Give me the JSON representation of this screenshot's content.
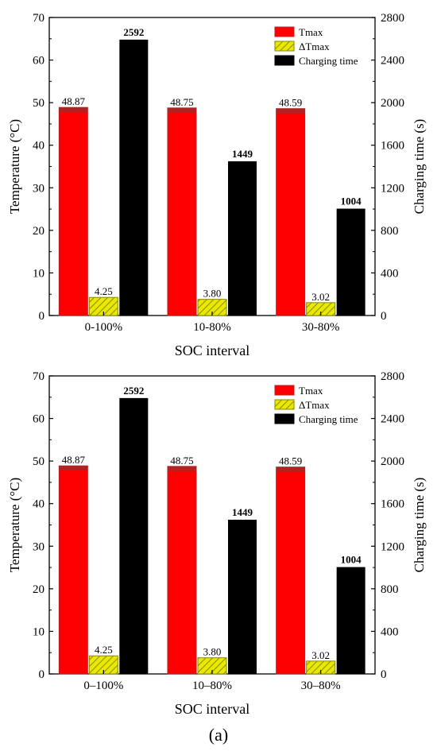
{
  "figure_caption": "(a)",
  "colors": {
    "tmax": "#ff0000",
    "tmax_edge": "#b22222",
    "dtmax": "#e8e800",
    "dtmax_hatch": "#8a8a00",
    "time": "#000000"
  },
  "chart_data": [
    {
      "type": "bar",
      "categories": [
        "0-100%",
        "10-80%",
        "30-80%"
      ],
      "xlabel": "SOC interval",
      "ylabel": "Temperature (°C)",
      "y2label": "Charging time (s)",
      "ylim": [
        0,
        70
      ],
      "y2lim": [
        0,
        2800
      ],
      "yticks": [
        0,
        10,
        20,
        30,
        40,
        50,
        60,
        70
      ],
      "y2ticks": [
        0,
        400,
        800,
        1200,
        1600,
        2000,
        2400,
        2800
      ],
      "legend_position": "top-right",
      "series": [
        {
          "name": "Tmax",
          "axis": "left",
          "values": [
            48.87,
            48.75,
            48.59
          ],
          "labels": [
            "48.87",
            "48.75",
            "48.59"
          ]
        },
        {
          "name": "ΔTmax",
          "axis": "left",
          "values": [
            4.25,
            3.8,
            3.02
          ],
          "labels": [
            "4.25",
            "3.80",
            "3.02"
          ]
        },
        {
          "name": "Charging time",
          "axis": "right",
          "values": [
            2592,
            1449,
            1004
          ],
          "labels": [
            "2592",
            "1449",
            "1004"
          ]
        }
      ]
    },
    {
      "type": "bar",
      "categories": [
        "0–100%",
        "10–80%",
        "30–80%"
      ],
      "xlabel": "SOC interval",
      "ylabel": "Temperature (°C)",
      "y2label": "Charging time (s)",
      "ylim": [
        0,
        70
      ],
      "y2lim": [
        0,
        2800
      ],
      "yticks": [
        0,
        10,
        20,
        30,
        40,
        50,
        60,
        70
      ],
      "y2ticks": [
        0,
        400,
        800,
        1200,
        1600,
        2000,
        2400,
        2800
      ],
      "legend_position": "top-right",
      "series": [
        {
          "name": "Tmax",
          "axis": "left",
          "values": [
            48.87,
            48.75,
            48.59
          ],
          "labels": [
            "48.87",
            "48.75",
            "48.59"
          ]
        },
        {
          "name": "ΔTmax",
          "axis": "left",
          "values": [
            4.25,
            3.8,
            3.02
          ],
          "labels": [
            "4.25",
            "3.80",
            "3.02"
          ]
        },
        {
          "name": "Charging time",
          "axis": "right",
          "values": [
            2592,
            1449,
            1004
          ],
          "labels": [
            "2592",
            "1449",
            "1004"
          ]
        }
      ]
    }
  ]
}
